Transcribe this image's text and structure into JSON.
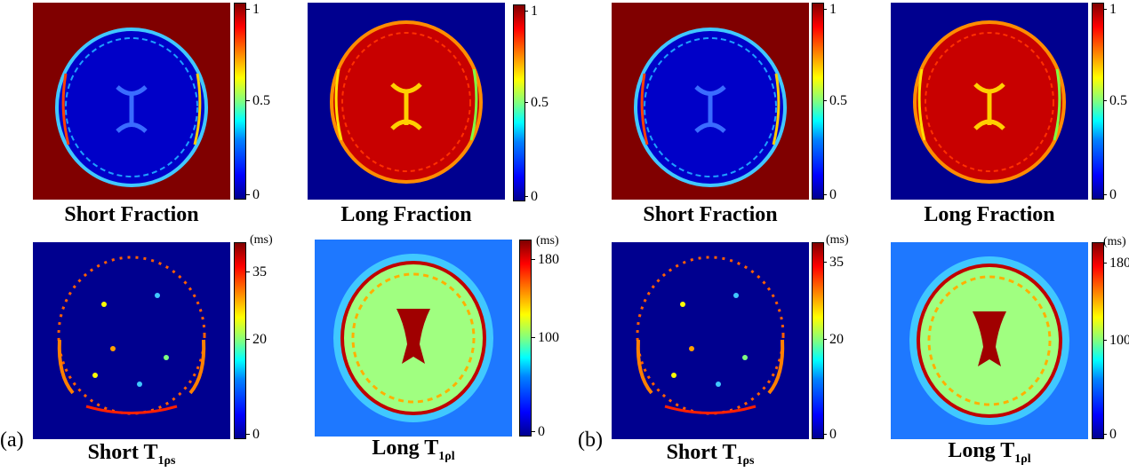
{
  "panel_labels": {
    "a": "(a)",
    "b": "(b)"
  },
  "captions": {
    "short_fraction": "Short Fraction",
    "long_fraction": "Long Fraction",
    "short_t_prefix": "Short T",
    "short_t_sub": "1ρs",
    "long_t_prefix": "Long T",
    "long_t_sub": "1ρl"
  },
  "colorbars": {
    "fraction": {
      "ticks": [
        "1",
        "0.5",
        "0"
      ]
    },
    "short_t": {
      "unit": "(ms)",
      "ticks": [
        "35",
        "20",
        "0"
      ]
    },
    "long_t": {
      "unit": "(ms)",
      "ticks": [
        "180",
        "100",
        "0"
      ]
    }
  },
  "colors": {
    "dark_red": "#800000",
    "dark_blue": "#00008f",
    "mid_blue": "#0000c8",
    "light_blue": "#1ea0ff",
    "yellow_green": "#c8ff50",
    "cyan": "#40c8ff"
  }
}
